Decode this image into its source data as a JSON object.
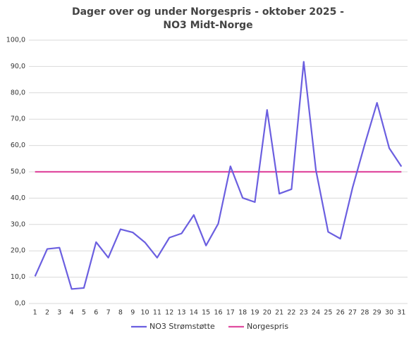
{
  "chart_data": {
    "type": "line",
    "title": [
      "Dager over og under Norgespris - oktober 2025 -",
      "NO3 Midt-Norge"
    ],
    "categories": [
      "1",
      "2",
      "3",
      "4",
      "5",
      "6",
      "7",
      "8",
      "9",
      "10",
      "11",
      "12",
      "13",
      "14",
      "15",
      "16",
      "17",
      "18",
      "19",
      "20",
      "21",
      "22",
      "23",
      "24",
      "25",
      "26",
      "27",
      "28",
      "29",
      "30",
      "31"
    ],
    "series": [
      {
        "name": "NO3 Strømstøtte",
        "color": "#6b5fe0",
        "values": [
          10.3,
          20.7,
          21.2,
          5.5,
          5.9,
          23.3,
          17.4,
          28.2,
          27.0,
          23.2,
          17.4,
          25.0,
          26.6,
          33.6,
          22.0,
          30.3,
          52.1,
          40.1,
          38.5,
          73.5,
          41.7,
          43.4,
          91.8,
          50.6,
          27.2,
          24.6,
          44.0,
          60.5,
          76.2,
          59.0,
          52.0
        ]
      },
      {
        "name": "Norgespris",
        "color": "#e04ca0",
        "values": [
          50,
          50,
          50,
          50,
          50,
          50,
          50,
          50,
          50,
          50,
          50,
          50,
          50,
          50,
          50,
          50,
          50,
          50,
          50,
          50,
          50,
          50,
          50,
          50,
          50,
          50,
          50,
          50,
          50,
          50,
          50
        ]
      }
    ],
    "ylim": [
      0,
      100
    ],
    "yticks": [
      {
        "value": 0,
        "label": "0,0"
      },
      {
        "value": 10,
        "label": "10,0"
      },
      {
        "value": 20,
        "label": "20,0"
      },
      {
        "value": 30,
        "label": "30,0"
      },
      {
        "value": 40,
        "label": "40,0"
      },
      {
        "value": 50,
        "label": "50,0"
      },
      {
        "value": 60,
        "label": "60,0"
      },
      {
        "value": 70,
        "label": "70,0"
      },
      {
        "value": 80,
        "label": "80,0"
      },
      {
        "value": 90,
        "label": "90,0"
      },
      {
        "value": 100,
        "label": "100,0"
      }
    ],
    "grid": true,
    "legend": "bottom"
  }
}
